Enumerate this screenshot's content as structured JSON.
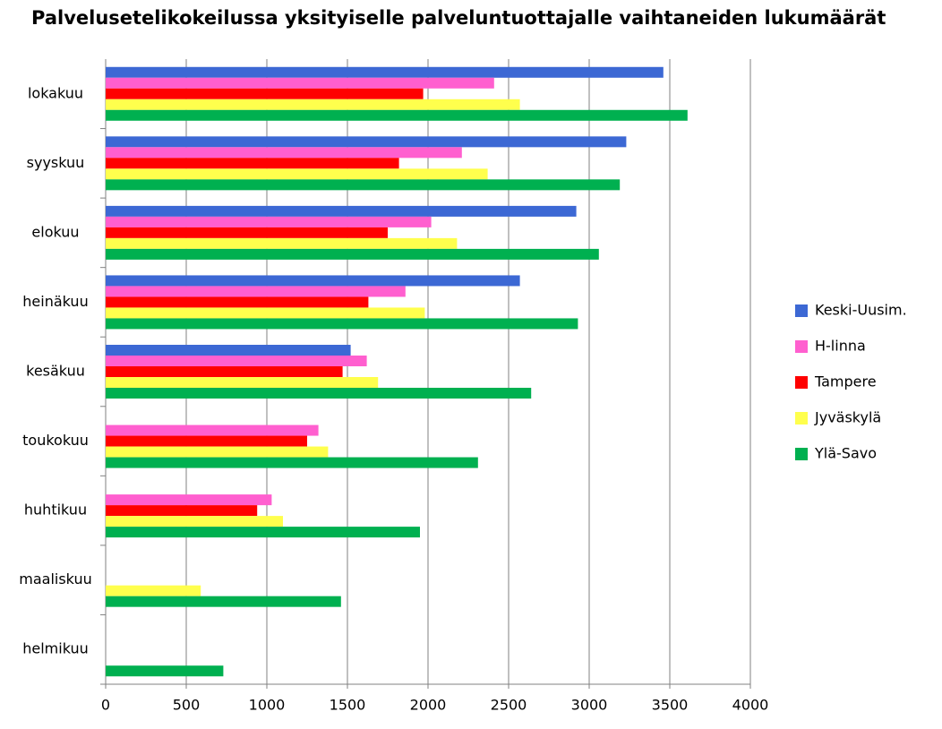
{
  "chart_data": {
    "type": "bar",
    "orientation": "horizontal",
    "title": "Palvelusetelikokeilussa yksityiselle palveluntuottajalle vaihtaneiden lukumäärät",
    "categories": [
      "lokakuu",
      "syyskuu",
      "elokuu",
      "heinäkuu",
      "kesäkuu",
      "toukokuu",
      "huhtikuu",
      "maaliskuu",
      "helmikuu"
    ],
    "series": [
      {
        "name": "Keski-Uusim.",
        "color": "#3c68d4",
        "values": [
          3460,
          3230,
          2920,
          2570,
          1520,
          null,
          null,
          null,
          null
        ]
      },
      {
        "name": "H-linna",
        "color": "#ff5fcf",
        "values": [
          2410,
          2210,
          2020,
          1860,
          1620,
          1320,
          1030,
          null,
          null
        ]
      },
      {
        "name": "Tampere",
        "color": "#ff0000",
        "values": [
          1970,
          1820,
          1750,
          1630,
          1470,
          1250,
          940,
          null,
          null
        ]
      },
      {
        "name": "Jyväskylä",
        "color": "#ffff4d",
        "values": [
          2570,
          2370,
          2180,
          1980,
          1690,
          1380,
          1100,
          590,
          null
        ]
      },
      {
        "name": "Ylä-Savo",
        "color": "#00b050",
        "values": [
          3610,
          3190,
          3060,
          2930,
          2640,
          2310,
          1950,
          1460,
          730
        ]
      }
    ],
    "xlim": [
      0,
      4000
    ],
    "xticks": [
      0,
      500,
      1000,
      1500,
      2000,
      2500,
      3000,
      3500,
      4000
    ],
    "grid": true,
    "legend": "right"
  }
}
